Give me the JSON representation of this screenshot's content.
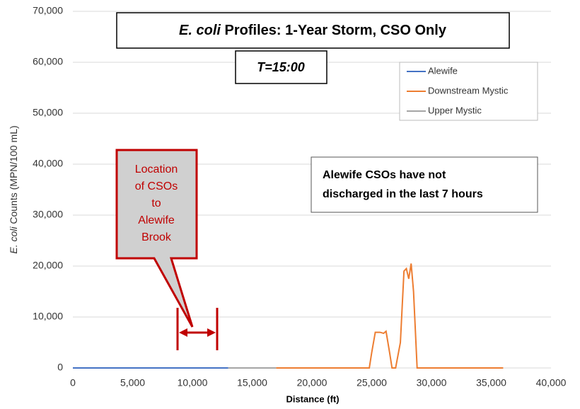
{
  "chart_data": {
    "type": "line",
    "title_italic": "E. coli",
    "title_rest": "Profiles:  1-Year Storm, CSO Only",
    "subtitle": "T=15:00",
    "xlabel": "Distance  (ft)",
    "ylabel_italic": "E. coli",
    "ylabel_rest": "Counts (MPN/100 mL)",
    "callout": [
      "Location",
      "of CSOs",
      "to",
      "Alewife",
      "Brook"
    ],
    "note": [
      "Alewife CSOs have not",
      "discharged in the last 7 hours"
    ],
    "xlim": [
      0,
      40000
    ],
    "ylim": [
      0,
      70000
    ],
    "xticks": [
      0,
      {
        "value": 5000,
        "label": "5,000"
      },
      {
        "value": 10000,
        "label": "10,000"
      },
      {
        "value": 15000,
        "label": "15,000"
      },
      {
        "value": 20000,
        "label": "20,000"
      },
      {
        "value": 25000,
        "label": "25,000"
      },
      {
        "value": 30000,
        "label": "30,000"
      },
      {
        "value": 35000,
        "label": "35,000"
      },
      {
        "value": 40000,
        "label": "40,000"
      }
    ],
    "yticks": [
      0,
      {
        "value": 10000,
        "label": "10,000"
      },
      {
        "value": 20000,
        "label": "20,000"
      },
      {
        "value": 30000,
        "label": "30,000"
      },
      {
        "value": 40000,
        "label": "40,000"
      },
      {
        "value": 50000,
        "label": "50,000"
      },
      {
        "value": 60000,
        "label": "60,000"
      },
      {
        "value": 70000,
        "label": "70,000"
      }
    ],
    "grid": true,
    "legend": "upper right",
    "series": [
      {
        "name": "Alewife",
        "color": "#4472c4",
        "x": [
          0,
          13000
        ],
        "values": [
          0,
          0
        ]
      },
      {
        "name": "Downstream Mystic",
        "color": "#ed7d31",
        "x": [
          17000,
          24800,
          25000,
          25300,
          25700,
          26000,
          26200,
          26500,
          26700,
          27000,
          27400,
          27700,
          27900,
          28100,
          28300,
          28500,
          28800,
          29200,
          36000
        ],
        "values": [
          0,
          0,
          3000,
          7000,
          7000,
          6800,
          7200,
          3000,
          0,
          0,
          5000,
          19000,
          19500,
          17500,
          20500,
          15000,
          0,
          0,
          0
        ]
      },
      {
        "name": "Upper Mystic",
        "color": "#a5a5a5",
        "x": [
          13000,
          17000
        ],
        "values": [
          0,
          0
        ]
      }
    ]
  }
}
